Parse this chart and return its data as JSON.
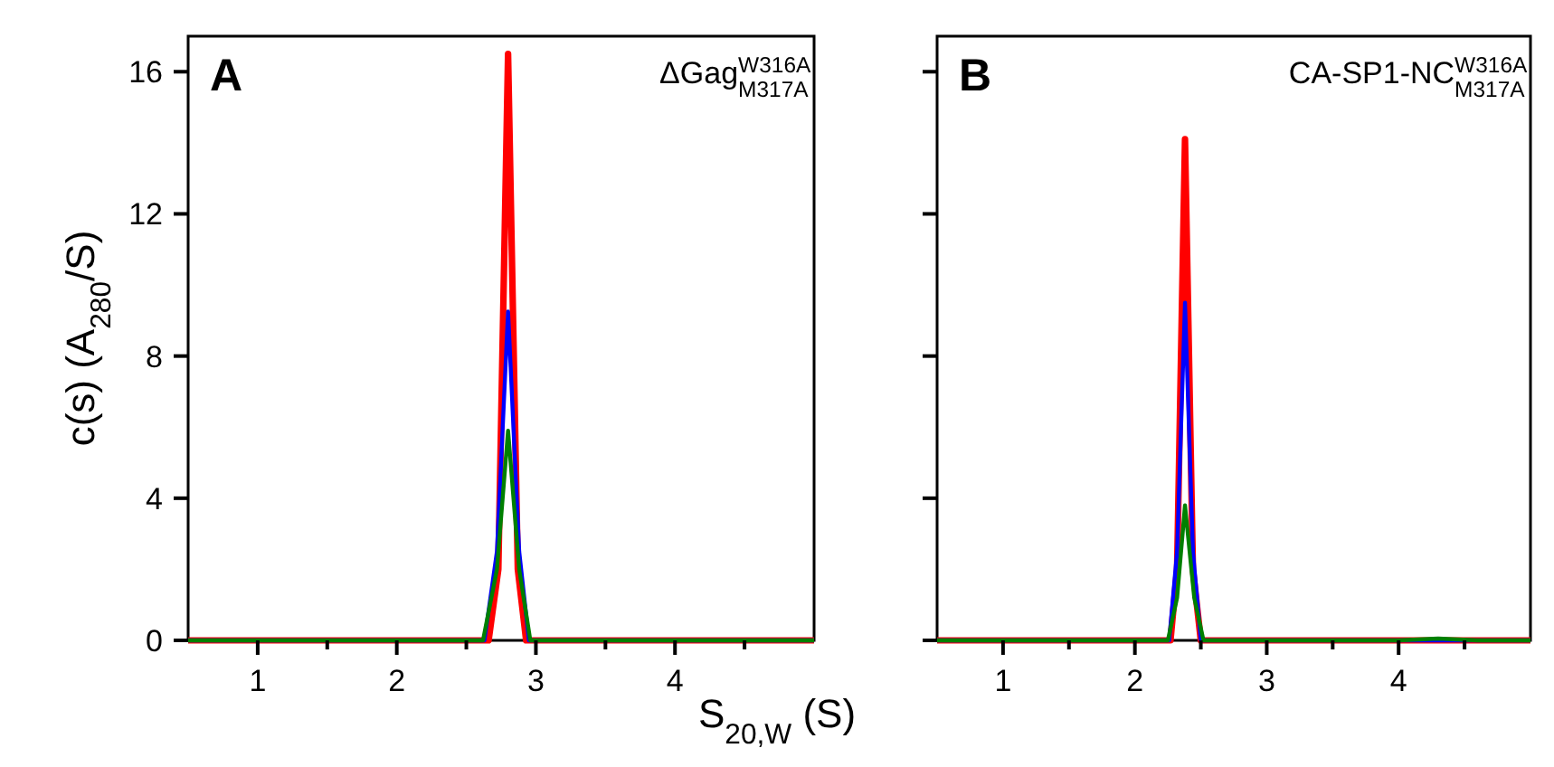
{
  "chart_data": [
    {
      "type": "line",
      "ylabel": "c(s) (A$_{280}$/S)",
      "xlabel": "S$_{20,W}$ (S)",
      "annotations": [
        "A",
        "ΔGag$^{W316A}$$_{M317A}$"
      ],
      "xlim": [
        0.5,
        5
      ],
      "xticks": [
        1,
        {
          "value": 1.5,
          "label": null
        },
        2,
        {
          "value": 2.5,
          "label": null
        },
        3,
        {
          "value": 3.5,
          "label": null
        },
        4,
        {
          "value": 4.5,
          "label": null
        }
      ],
      "ylim": [
        0,
        17
      ],
      "yticks": [
        0,
        4,
        8,
        12,
        16
      ],
      "series": [
        {
          "color": "#ff0000",
          "x": [
            0.5,
            2.66,
            2.73,
            2.8,
            2.87,
            2.93,
            5
          ],
          "values": [
            0,
            0,
            2,
            16.5,
            2,
            0,
            0
          ]
        },
        {
          "color": "#0000ff",
          "x": [
            0.5,
            2.63,
            2.72,
            2.8,
            2.88,
            2.95,
            5
          ],
          "values": [
            0,
            0,
            2.5,
            9.25,
            2.5,
            0,
            0
          ]
        },
        {
          "color": "#008000",
          "x": [
            0.5,
            2.62,
            2.72,
            2.8,
            2.88,
            2.96,
            5
          ],
          "values": [
            0,
            0,
            2,
            5.9,
            2,
            0,
            0
          ]
        }
      ]
    },
    {
      "type": "line",
      "tick_labels": "x",
      "annotations": [
        "B",
        "CA-SP1-NC$^{W316A}$$_{M317A}$"
      ],
      "xlim": [
        0.5,
        5
      ],
      "xticks": [
        1,
        {
          "value": 1.5,
          "label": null
        },
        2,
        {
          "value": 2.5,
          "label": null
        },
        3,
        {
          "value": 3.5,
          "label": null
        },
        4,
        {
          "value": 4.5,
          "label": null
        }
      ],
      "ylim": [
        0,
        17
      ],
      "yticks": [
        0,
        4,
        8,
        12,
        16
      ],
      "series": [
        {
          "color": "#ff0000",
          "x": [
            0.5,
            2.27,
            2.32,
            2.38,
            2.44,
            2.5,
            5
          ],
          "values": [
            0,
            0,
            2,
            14.1,
            2,
            0,
            0
          ]
        },
        {
          "color": "#0000ff",
          "x": [
            0.5,
            2.26,
            2.32,
            2.38,
            2.44,
            2.5,
            5
          ],
          "values": [
            0,
            0,
            2.5,
            9.5,
            2.5,
            0,
            0
          ]
        },
        {
          "color": "#008000",
          "x": [
            0.5,
            2.25,
            2.32,
            2.38,
            2.45,
            2.52,
            4,
            4.3,
            4.6,
            5
          ],
          "values": [
            0,
            0,
            1.2,
            3.8,
            1.2,
            0,
            0,
            0.05,
            0,
            0
          ]
        }
      ]
    }
  ]
}
